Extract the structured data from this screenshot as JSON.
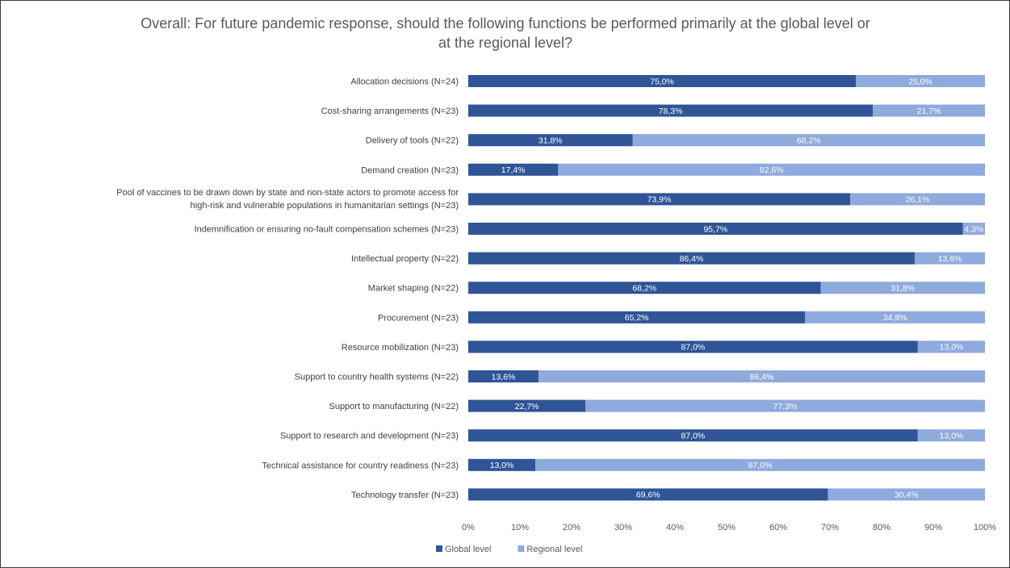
{
  "chart_data": {
    "type": "bar",
    "orientation": "horizontal",
    "stacked": true,
    "title": "Overall: For future pandemic response, should the following functions be performed primarily at the global level or at the regional level?",
    "categories": [
      "Allocation decisions (N=24)",
      "Cost-sharing arrangements (N=23)",
      "Delivery of tools (N=22)",
      "Demand creation (N=23)",
      "Pool of vaccines to be drawn down by state and non-state actors to promote access for high-risk and vulnerable populations in humanitarian settings (N=23)",
      "Indemnification or ensuring no-fault compensation schemes (N=23)",
      "Intellectual property (N=22)",
      "Market shaping (N=22)",
      "Procurement (N=23)",
      "Resource mobilization (N=23)",
      "Support to country health systems (N=22)",
      "Support to manufacturing (N=22)",
      "Support to research and development (N=23)",
      "Technical assistance for country readiness (N=23)",
      "Technology transfer (N=23)"
    ],
    "series": [
      {
        "name": "Global level",
        "color": "#2f5597",
        "values": [
          75.0,
          78.3,
          31.8,
          17.4,
          73.9,
          95.7,
          86.4,
          68.2,
          65.2,
          87.0,
          13.6,
          22.7,
          87.0,
          13.0,
          69.6
        ],
        "labels": [
          "75,0%",
          "78,3%",
          "31,8%",
          "17,4%",
          "73,9%",
          "95,7%",
          "86,4%",
          "68,2%",
          "65,2%",
          "87,0%",
          "13,6%",
          "22,7%",
          "87,0%",
          "13,0%",
          "69,6%"
        ]
      },
      {
        "name": "Regional level",
        "color": "#8faadc",
        "values": [
          25.0,
          21.7,
          68.2,
          82.6,
          26.1,
          4.3,
          13.6,
          31.8,
          34.8,
          13.0,
          86.4,
          77.3,
          13.0,
          87.0,
          30.4
        ],
        "labels": [
          "25,0%",
          "21,7%",
          "68,2%",
          "82,6%",
          "26,1%",
          "4,3%",
          "13,6%",
          "31,8%",
          "34,8%",
          "13,0%",
          "86,4%",
          "77,3%",
          "13,0%",
          "87,0%",
          "30,4%"
        ]
      }
    ],
    "xlim": [
      0,
      100
    ],
    "xticks": [
      "0%",
      "10%",
      "20%",
      "30%",
      "40%",
      "50%",
      "60%",
      "70%",
      "80%",
      "90%",
      "100%"
    ],
    "xlabel": "",
    "ylabel": "",
    "grid": false,
    "legend": "bottom"
  }
}
